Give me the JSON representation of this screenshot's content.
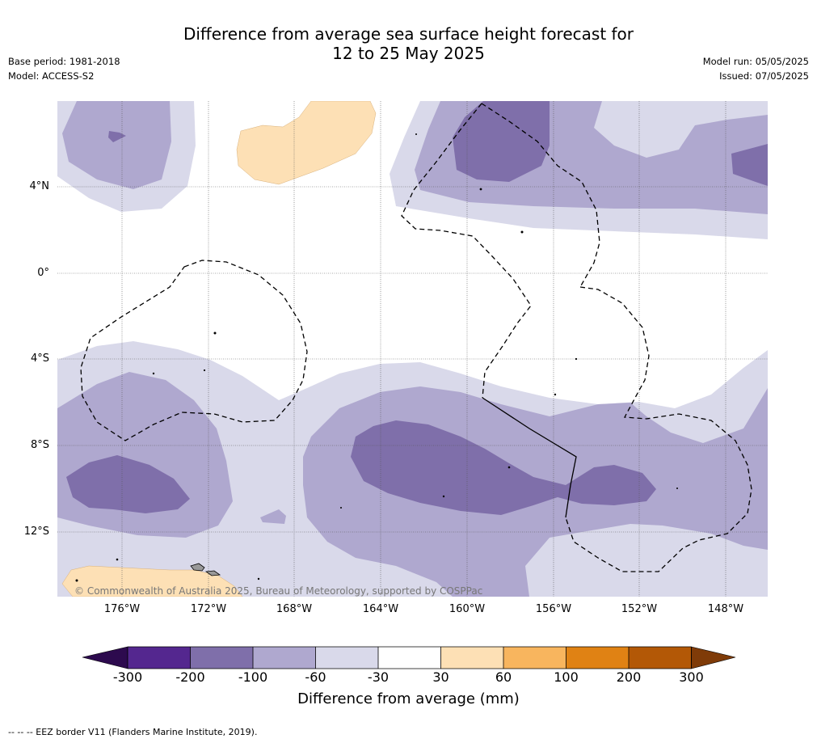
{
  "header": {
    "title_line1": "Difference from average sea surface height forecast for",
    "title_line2": "12 to 25 May 2025",
    "base_period": "Base period: 1981-2018",
    "model": "Model: ACCESS-S2",
    "model_run": "Model run: 05/05/2025",
    "issued": "Issued: 07/05/2025"
  },
  "map": {
    "copyright": "© Commonwealth of Australia 2025, Bureau of Meteorology, supported by COSPPac",
    "lon_labels": [
      "176°W",
      "172°W",
      "168°W",
      "164°W",
      "160°W",
      "156°W",
      "152°W",
      "148°W"
    ],
    "lat_labels": [
      "4°N",
      "0°",
      "4°S",
      "8°S",
      "12°S"
    ]
  },
  "colorbar": {
    "label": "Difference from average (mm)",
    "ticks": [
      "-300",
      "-200",
      "-100",
      "-60",
      "-30",
      "30",
      "60",
      "100",
      "200",
      "300"
    ],
    "colors": {
      "lt_300": "#2d0a4e",
      "n300_n200": "#54278f",
      "n200_n100": "#7f6faa",
      "n100_n60": "#afa8cf",
      "n60_n30": "#d9d9ea",
      "n30_30": "#ffffff",
      "p30_60": "#fde0b5",
      "p60_100": "#f8b55e",
      "p100_200": "#e08214",
      "p200_300": "#b35806",
      "gt_300": "#7f3b08"
    }
  },
  "footnote": "-- -- -- EEZ border V11 (Flanders Marine Institute, 2019)."
}
